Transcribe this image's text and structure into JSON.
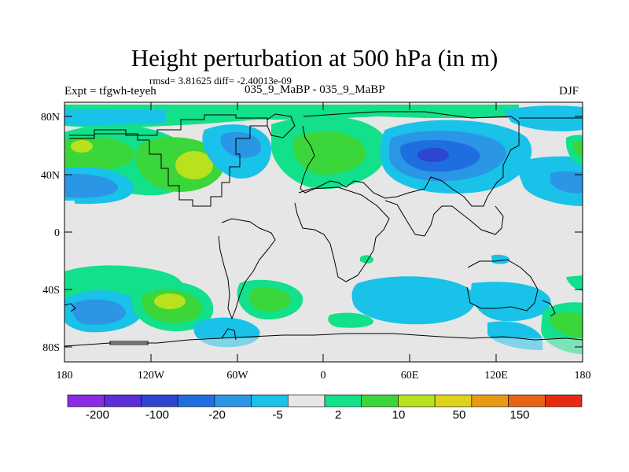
{
  "title": "Height perturbation at 500 hPa (in m)",
  "stats_line": "rmsd= 3.81625  diff= -2.40013e-09",
  "experiment_label": "Expt = tfgwh-teyeh",
  "run_label": "035_9_MaBP - 035_9_MaBP",
  "season": "DJF",
  "chart_data": {
    "type": "heatmap",
    "variable": "500 hPa height perturbation",
    "units": "m",
    "xlim": [
      -180,
      180
    ],
    "ylim": [
      -90,
      90
    ],
    "x_tick_labels": [
      "180",
      "120W",
      "60W",
      "0",
      "60E",
      "120E",
      "180"
    ],
    "y_tick_labels": [
      "80N",
      "40N",
      "0",
      "40S",
      "80S"
    ],
    "colorbar": {
      "colors": [
        "#8b2be2",
        "#5a2fd8",
        "#2d45d0",
        "#1f6ee0",
        "#2b95e6",
        "#19c2e8",
        "#e6e6e6",
        "#13e08a",
        "#3ad63a",
        "#b8e21d",
        "#dfd21a",
        "#e89a14",
        "#e86414",
        "#e82a12"
      ],
      "tick_labels": [
        "-200",
        "-100",
        "-20",
        "-5",
        "2",
        "10",
        "50",
        "150"
      ]
    }
  },
  "colors": {
    "background": "#e6e6e6",
    "neg_light": "#19c2e8",
    "neg_mid": "#2b95e6",
    "neg_strong": "#1f6ee0",
    "pos_light": "#13e08a",
    "pos_mid": "#3ad63a",
    "pos_strong": "#b8e21d",
    "coast": "#000000"
  }
}
